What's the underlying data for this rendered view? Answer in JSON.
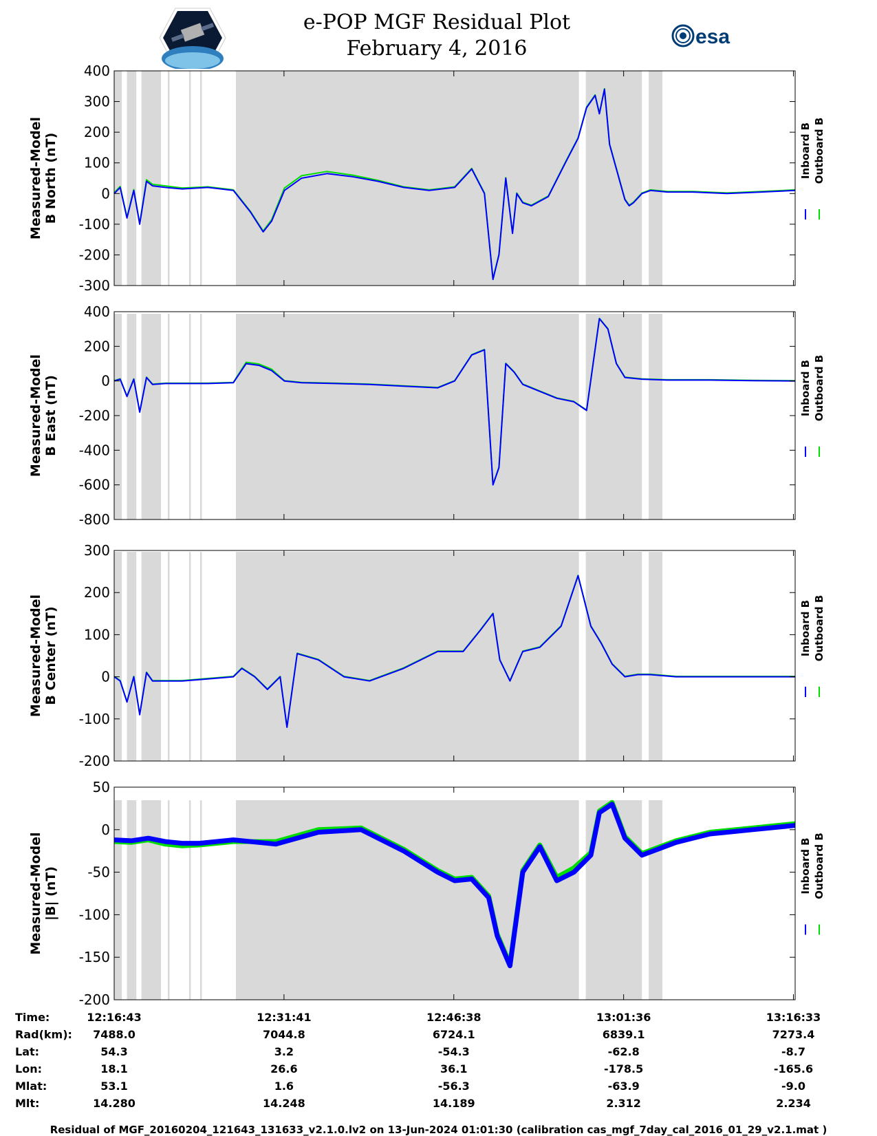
{
  "header": {
    "title": "e-POP MGF Residual Plot",
    "subtitle": "February 4, 2016",
    "logo_left": "cassiope-mission-logo",
    "logo_right": "esa-logo",
    "logo_right_text": "esa"
  },
  "colors": {
    "inboard": "#0000ff",
    "outboard": "#00dd00",
    "shade": "#d9d9d9"
  },
  "chart_data": [
    {
      "type": "line",
      "ylabel_line1": "Measured-Model",
      "ylabel_line2": "B North (nT)",
      "ylim": [
        -300,
        400
      ],
      "yticks": [
        "400",
        "300",
        "200",
        "100",
        "0",
        "-100",
        "-200",
        "-300"
      ],
      "legend": [
        "Inboard B",
        "Outboard B"
      ],
      "x_minutes": [
        0,
        0.7,
        1.5,
        2.3,
        3,
        3.8,
        4.5,
        6,
        8,
        11,
        14,
        16,
        17.5,
        18.5,
        20,
        22,
        25,
        28,
        31,
        34,
        37,
        40,
        42,
        43.5,
        44.5,
        45.2,
        46,
        46.8,
        47.3,
        48,
        49,
        51,
        53,
        54.5,
        55.5,
        56.5,
        57,
        57.6,
        58.2,
        59,
        60,
        60.5,
        61,
        62,
        63,
        65,
        68,
        72,
        76,
        80
      ],
      "series": [
        {
          "name": "Inboard B",
          "values": [
            0,
            20,
            -80,
            10,
            -100,
            40,
            25,
            20,
            15,
            20,
            10,
            -60,
            -125,
            -90,
            10,
            50,
            65,
            55,
            40,
            20,
            10,
            20,
            80,
            0,
            -280,
            -200,
            50,
            -130,
            0,
            -30,
            -40,
            -10,
            100,
            180,
            280,
            320,
            260,
            340,
            160,
            80,
            -20,
            -40,
            -30,
            0,
            10,
            5,
            5,
            0,
            5,
            10
          ]
        },
        {
          "name": "Outboard B",
          "values": [
            3,
            23,
            -77,
            13,
            -97,
            45,
            30,
            25,
            18,
            22,
            12,
            -58,
            -122,
            -85,
            18,
            58,
            72,
            60,
            43,
            22,
            12,
            22,
            82,
            2,
            -278,
            -198,
            52,
            -128,
            2,
            -28,
            -38,
            -8,
            102,
            182,
            282,
            322,
            262,
            342,
            162,
            82,
            -18,
            -38,
            -28,
            2,
            12,
            7,
            7,
            2,
            7,
            12
          ]
        }
      ]
    },
    {
      "type": "line",
      "ylabel_line1": "Measured-Model",
      "ylabel_line2": "B East (nT)",
      "ylim": [
        -800,
        400
      ],
      "yticks": [
        "400",
        "200",
        "0",
        "-200",
        "-400",
        "-600",
        "-800"
      ],
      "legend": [
        "Inboard B",
        "Outboard B"
      ],
      "x_minutes": [
        0,
        0.7,
        1.5,
        2.3,
        3,
        3.8,
        4.5,
        6,
        8,
        11,
        14,
        15.5,
        17,
        18.5,
        20,
        22,
        26,
        30,
        34,
        38,
        40,
        42,
        43.5,
        44.5,
        45.2,
        46,
        47,
        48,
        50,
        52,
        54,
        55.5,
        57,
        58,
        59,
        60,
        62,
        65,
        70,
        75,
        80
      ],
      "series": [
        {
          "name": "Inboard B",
          "values": [
            0,
            10,
            -90,
            10,
            -180,
            20,
            -20,
            -15,
            -15,
            -15,
            -10,
            100,
            90,
            60,
            0,
            -10,
            -15,
            -20,
            -30,
            -40,
            0,
            150,
            180,
            -600,
            -500,
            100,
            50,
            -20,
            -60,
            -100,
            -120,
            -170,
            360,
            300,
            100,
            20,
            10,
            5,
            5,
            2,
            0
          ]
        },
        {
          "name": "Outboard B",
          "values": [
            2,
            12,
            -88,
            12,
            -178,
            22,
            -18,
            -13,
            -13,
            -13,
            -8,
            108,
            98,
            68,
            2,
            -8,
            -13,
            -18,
            -28,
            -38,
            2,
            152,
            182,
            -598,
            -498,
            102,
            52,
            -18,
            -58,
            -98,
            -118,
            -168,
            362,
            302,
            102,
            22,
            12,
            7,
            7,
            4,
            2
          ]
        }
      ]
    },
    {
      "type": "line",
      "ylabel_line1": "Measured-Model",
      "ylabel_line2": "B Center (nT)",
      "ylim": [
        -200,
        300
      ],
      "yticks": [
        "300",
        "200",
        "100",
        "0",
        "-100",
        "-200"
      ],
      "legend": [
        "Inboard B",
        "Outboard B"
      ],
      "x_minutes": [
        0,
        0.7,
        1.5,
        2.3,
        3,
        3.8,
        4.5,
        6,
        8,
        11,
        14,
        15,
        16.5,
        18,
        19.5,
        20.3,
        21.5,
        24,
        27,
        30,
        34,
        38,
        41,
        43,
        44.5,
        45.3,
        46.5,
        48,
        50,
        52.5,
        54.5,
        56,
        57.2,
        58.5,
        60,
        61.5,
        63,
        66,
        70,
        75,
        80
      ],
      "series": [
        {
          "name": "Inboard B",
          "values": [
            0,
            -10,
            -60,
            0,
            -90,
            10,
            -10,
            -10,
            -10,
            -5,
            0,
            20,
            0,
            -30,
            0,
            -120,
            55,
            40,
            0,
            -10,
            20,
            60,
            60,
            110,
            150,
            40,
            -10,
            60,
            70,
            120,
            240,
            120,
            80,
            30,
            0,
            5,
            5,
            0,
            0,
            0,
            0
          ]
        },
        {
          "name": "Outboard B",
          "values": [
            1,
            -9,
            -59,
            1,
            -89,
            11,
            -9,
            -9,
            -9,
            -4,
            1,
            21,
            1,
            -29,
            1,
            -119,
            56,
            41,
            1,
            -9,
            21,
            61,
            61,
            111,
            151,
            41,
            -9,
            61,
            71,
            121,
            241,
            121,
            81,
            31,
            1,
            6,
            6,
            1,
            1,
            1,
            1
          ]
        }
      ]
    },
    {
      "type": "line",
      "ylabel_line1": "Measured-Model",
      "ylabel_line2": "|B| (nT)",
      "ylim": [
        -200,
        50
      ],
      "yticks": [
        "50",
        "0",
        "-50",
        "-100",
        "-150",
        "-200"
      ],
      "legend": [
        "Inboard B",
        "Outboard B"
      ],
      "x_minutes": [
        0,
        2,
        4,
        6,
        8,
        10,
        14,
        19,
        24,
        29,
        34,
        38,
        40,
        42,
        44,
        45,
        46.5,
        48,
        50,
        52,
        54,
        56,
        57,
        58.5,
        60,
        62,
        66,
        70,
        75,
        80
      ],
      "series": [
        {
          "name": "Inboard B",
          "values": [
            -12,
            -13,
            -10,
            -14,
            -16,
            -16,
            -12,
            -17,
            -3,
            0,
            -25,
            -50,
            -60,
            -58,
            -80,
            -125,
            -160,
            -50,
            -20,
            -60,
            -50,
            -30,
            20,
            30,
            -10,
            -30,
            -15,
            -5,
            0,
            5
          ]
        },
        {
          "name": "Outboard B",
          "values": [
            -14,
            -15,
            -12,
            -17,
            -19,
            -18,
            -14,
            -14,
            0,
            2,
            -23,
            -48,
            -58,
            -56,
            -78,
            -123,
            -158,
            -48,
            -18,
            -56,
            -45,
            -27,
            22,
            32,
            -8,
            -28,
            -13,
            -3,
            2,
            7
          ]
        }
      ]
    }
  ],
  "shade_spans_minutes": [
    [
      0,
      0.9
    ],
    [
      1.5,
      2.6
    ],
    [
      3.2,
      5.5
    ],
    [
      6.3,
      6.5
    ],
    [
      8.8,
      9.0
    ],
    [
      10.1,
      10.3
    ],
    [
      14.3,
      54.6
    ],
    [
      55.4,
      62.0
    ],
    [
      62.8,
      64.4
    ]
  ],
  "x_tick_positions_minutes": [
    0,
    19.95,
    39.9,
    59.85,
    79.8
  ],
  "info_table": {
    "row_labels": [
      "Time:",
      "Rad(km):",
      "Lat:",
      "Lon:",
      "Mlat:",
      "Mlt:"
    ],
    "columns": [
      [
        "12:16:43",
        "7488.0",
        "54.3",
        "18.1",
        "53.1",
        "14.280"
      ],
      [
        "12:31:41",
        "7044.8",
        "3.2",
        "26.6",
        "1.6",
        "14.248"
      ],
      [
        "12:46:38",
        "6724.1",
        "-54.3",
        "36.1",
        "-56.3",
        "14.189"
      ],
      [
        "13:01:36",
        "6839.1",
        "-62.8",
        "-178.5",
        "-63.9",
        "2.312"
      ],
      [
        "13:16:33",
        "7273.4",
        "-8.7",
        "-165.6",
        "-9.0",
        "2.234"
      ]
    ]
  },
  "footer": "Residual of MGF_20160204_121643_131633_v2.1.0.lv2 on 13-Jun-2024 01:01:30 (calibration cas_mgf_7day_cal_2016_01_29_v2.1.mat )"
}
